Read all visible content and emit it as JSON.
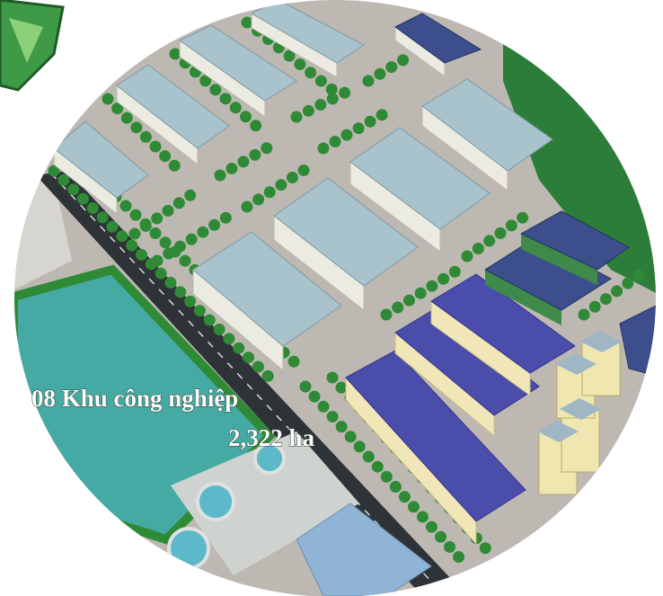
{
  "caption": {
    "line1": "08 Khu công nghiệp",
    "line2": "2,322 ha"
  }
}
